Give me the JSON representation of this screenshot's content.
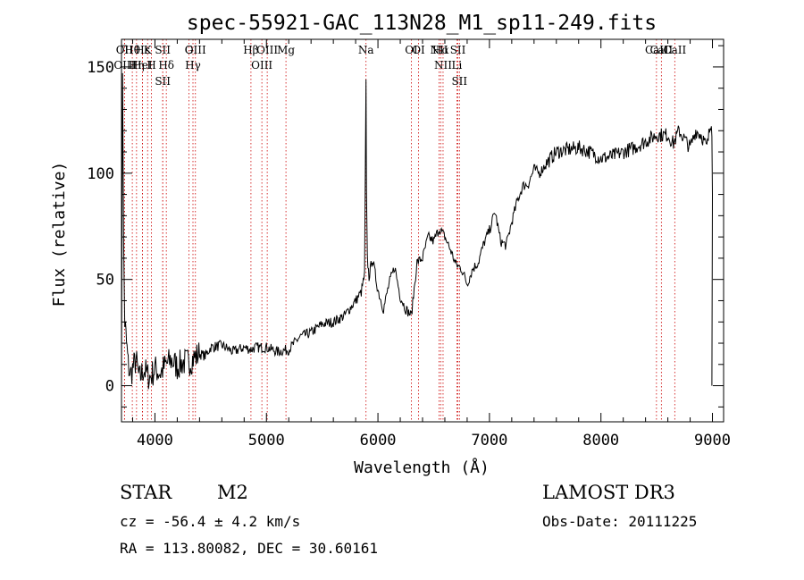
{
  "chart_data": {
    "type": "line",
    "title": "spec-55921-GAC_113N28_M1_sp11-249.fits",
    "xlabel": "Wavelength (Å)",
    "ylabel": "Flux (relative)",
    "xlim": [
      3700,
      9100
    ],
    "ylim": [
      -17,
      163
    ],
    "x_ticks": [
      4000,
      5000,
      6000,
      7000,
      8000,
      9000
    ],
    "x_tick_labels": [
      "4000",
      "5000",
      "6000",
      "7000",
      "8000",
      "9000"
    ],
    "y_ticks": [
      0,
      50,
      100,
      150
    ],
    "y_tick_labels": [
      "0",
      "50",
      "100",
      "150"
    ],
    "series": [
      {
        "name": "flux",
        "x": [
          3700,
          3710,
          3720,
          3730,
          3745,
          3760,
          3780,
          3800,
          3830,
          3860,
          3900,
          3930,
          3960,
          4000,
          4050,
          4100,
          4150,
          4200,
          4250,
          4300,
          4350,
          4400,
          4450,
          4500,
          4600,
          4700,
          4800,
          4861,
          4900,
          5000,
          5100,
          5200,
          5300,
          5400,
          5500,
          5600,
          5700,
          5800,
          5850,
          5880,
          5893,
          5897,
          5905,
          5920,
          5950,
          6000,
          6050,
          6100,
          6150,
          6200,
          6250,
          6300,
          6350,
          6400,
          6450,
          6500,
          6550,
          6600,
          6650,
          6700,
          6750,
          6800,
          6850,
          6900,
          6950,
          7000,
          7050,
          7100,
          7150,
          7200,
          7250,
          7300,
          7350,
          7400,
          7450,
          7500,
          7600,
          7700,
          7800,
          7900,
          8000,
          8100,
          8200,
          8300,
          8400,
          8500,
          8600,
          8650,
          8700,
          8750,
          8800,
          8850,
          8900,
          8950,
          8980,
          8990,
          8995,
          9000
        ],
        "y": [
          5,
          150,
          60,
          30,
          20,
          10,
          5,
          8,
          12,
          3,
          8,
          5,
          4,
          8,
          6,
          10,
          12,
          9,
          11,
          11,
          13,
          15,
          14,
          18,
          19,
          16,
          18,
          17,
          18,
          18,
          16,
          17,
          23,
          25,
          29,
          30,
          33,
          40,
          44,
          52,
          143,
          90,
          60,
          51,
          60,
          45,
          36,
          48,
          56,
          42,
          36,
          33,
          58,
          60,
          70,
          68,
          74,
          70,
          64,
          57,
          55,
          48,
          55,
          58,
          67,
          73,
          82,
          68,
          66,
          77,
          87,
          94,
          95,
          102,
          100,
          104,
          110,
          111,
          112,
          110,
          107,
          108,
          110,
          112,
          115,
          118,
          118,
          114,
          120,
          116,
          112,
          120,
          118,
          112,
          122,
          125,
          120,
          90
        ]
      }
    ],
    "line_markers": [
      {
        "label": "Hθ",
        "x": 3797
      },
      {
        "label": "OII",
        "x": 3727
      },
      {
        "label": "OIII",
        "x": 3727
      },
      {
        "label": "Hε",
        "x": 3889
      },
      {
        "label": "Hη",
        "x": 3835
      },
      {
        "label": "K",
        "x": 3934
      },
      {
        "label": "HeI",
        "x": 3888
      },
      {
        "label": "H",
        "x": 3969
      },
      {
        "label": "SII",
        "x": 4070
      },
      {
        "label": "Hδ",
        "x": 4102
      },
      {
        "label": "SII",
        "x": 4070
      },
      {
        "label": "OIII",
        "x": 4363
      },
      {
        "label": "Hγ",
        "x": 4341
      },
      {
        "label": "G",
        "x": 4305
      },
      {
        "label": "OIII",
        "x": 5007
      },
      {
        "label": "OIII",
        "x": 4959
      },
      {
        "label": "Hβ",
        "x": 4861
      },
      {
        "label": "Mg",
        "x": 5175
      },
      {
        "label": "Na",
        "x": 5893
      },
      {
        "label": "OI",
        "x": 6300
      },
      {
        "label": "OI",
        "x": 6364
      },
      {
        "label": "Hα",
        "x": 6563
      },
      {
        "label": "NII",
        "x": 6548
      },
      {
        "label": "NII",
        "x": 6584
      },
      {
        "label": "SII",
        "x": 6717
      },
      {
        "label": "Li",
        "x": 6708
      },
      {
        "label": "SII",
        "x": 6731
      },
      {
        "label": "CaII",
        "x": 8542
      },
      {
        "label": "CaII",
        "x": 8498
      },
      {
        "label": "CaII",
        "x": 8662
      }
    ],
    "line_marker_color": "#cc0000",
    "trace_color": "#000000"
  },
  "info": {
    "object_type": "STAR",
    "subclass": "M2",
    "survey": "LAMOST DR3",
    "redshift": "cz = -56.4 ± 4.2 km/s",
    "obs_date": "Obs-Date: 20111225",
    "coords": "RA = 113.80082, DEC =  30.60161"
  }
}
